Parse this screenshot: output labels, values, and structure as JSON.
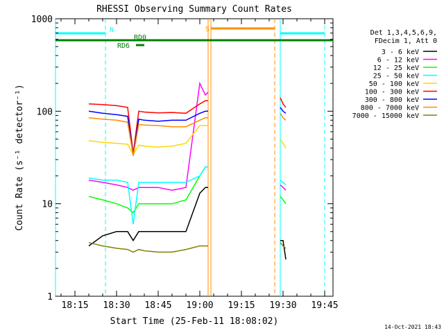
{
  "chart_data": {
    "type": "line",
    "title": "RHESSI Observing Summary Count Rates",
    "xlabel": "Start Time (25-Feb-11 18:08:02)",
    "ylabel": "Count Rate (s⁻¹ detector⁻¹)",
    "y_scale": "log",
    "ylim": [
      1,
      1000
    ],
    "xlim": [
      "18:08",
      "19:48"
    ],
    "grid": false,
    "legend_position": "right",
    "x_tick_labels": [
      "18:15",
      "18:30",
      "18:45",
      "19:00",
      "19:15",
      "19:30",
      "19:45"
    ],
    "y_tick_labels": [
      "1",
      "10",
      "100",
      "1000"
    ],
    "legend_header": [
      "Det 1,3,4,5,6,9,",
      "FDecim 1, Att 0"
    ],
    "footer_date": "14-Oct-2021 18:43",
    "flags": [
      {
        "label": "N",
        "color": "#00ffff",
        "segments": [
          [
            "18:08",
            "18:26"
          ],
          [
            "19:29",
            "19:45"
          ]
        ]
      },
      {
        "label": "S",
        "color": "#ff8c00",
        "segments": [
          [
            "19:04",
            "19:27"
          ]
        ]
      },
      {
        "label": "RD0",
        "color": "#008000",
        "segments": [
          [
            "18:08",
            "19:48"
          ]
        ]
      },
      {
        "label": "RD6",
        "color": "#008000",
        "segments": [
          [
            "18:37",
            "18:40"
          ]
        ]
      }
    ],
    "boundary_lines": [
      {
        "color": "#00ffff",
        "style": "solid",
        "times": [
          "18:08",
          "19:29"
        ]
      },
      {
        "color": "#00ffff",
        "style": "dashed",
        "times": [
          "18:26",
          "19:45"
        ]
      },
      {
        "color": "#ff8c00",
        "style": "solid",
        "times": [
          "19:03",
          "19:04"
        ]
      },
      {
        "color": "#ff8c00",
        "style": "dashed",
        "times": [
          "19:27"
        ]
      }
    ],
    "x": [
      "18:20",
      "18:25",
      "18:30",
      "18:34",
      "18:36",
      "18:38",
      "18:40",
      "18:45",
      "18:50",
      "18:55",
      "19:00",
      "19:02",
      "19:03",
      "19:29",
      "19:30",
      "19:31"
    ],
    "series": [
      {
        "name": "3 - 6 keV",
        "color": "#000000",
        "values": [
          3.5,
          4.5,
          5,
          5,
          4,
          5,
          5,
          5,
          5,
          5,
          13,
          15,
          15,
          4,
          4,
          2.5
        ]
      },
      {
        "name": "6 - 12 keV",
        "color": "#ff00ff",
        "values": [
          18,
          17,
          16,
          15,
          14,
          15,
          15,
          15,
          14,
          15,
          200,
          150,
          160,
          16,
          15,
          14
        ]
      },
      {
        "name": "12 - 25 keV",
        "color": "#00ff00",
        "values": [
          12,
          11,
          10,
          9,
          8,
          10,
          10,
          10,
          10,
          11,
          20,
          25,
          25,
          12,
          11,
          10
        ]
      },
      {
        "name": "25 - 50 keV",
        "color": "#00ffff",
        "values": [
          19,
          18,
          18,
          17,
          6,
          17,
          17,
          17,
          17,
          17,
          20,
          25,
          25,
          18,
          17,
          16
        ]
      },
      {
        "name": "50 - 100 keV",
        "color": "#ffd700",
        "values": [
          48,
          46,
          45,
          44,
          34,
          43,
          42,
          41,
          42,
          45,
          70,
          70,
          70,
          50,
          45,
          40
        ]
      },
      {
        "name": "100 - 300 keV",
        "color": "#ff0000",
        "values": [
          120,
          118,
          115,
          110,
          35,
          100,
          98,
          96,
          97,
          95,
          120,
          130,
          130,
          140,
          120,
          110
        ]
      },
      {
        "name": "300 - 800 keV",
        "color": "#0000ff",
        "values": [
          100,
          95,
          92,
          88,
          33,
          82,
          80,
          78,
          80,
          80,
          95,
          100,
          100,
          110,
          100,
          95
        ]
      },
      {
        "name": "800 - 7000 keV",
        "color": "#ff8c00",
        "values": [
          85,
          82,
          80,
          76,
          33,
          72,
          71,
          70,
          68,
          68,
          80,
          85,
          85,
          95,
          85,
          80
        ]
      },
      {
        "name": "7000 - 15000 keV",
        "color": "#808000",
        "values": [
          3.8,
          3.5,
          3.3,
          3.2,
          3.0,
          3.2,
          3.1,
          3.0,
          3.0,
          3.2,
          3.5,
          3.5,
          3.5,
          3.8,
          3.5,
          3.3
        ]
      }
    ]
  }
}
